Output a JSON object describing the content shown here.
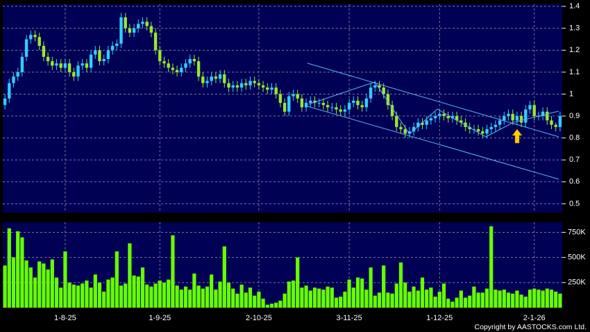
{
  "chart_data": {
    "type": "candlestick",
    "categories": [
      null,
      null,
      null,
      null,
      null,
      null,
      null,
      null,
      null,
      null,
      null,
      null,
      null,
      null,
      "1-8-25",
      null,
      null,
      null,
      null,
      null,
      null,
      null,
      null,
      null,
      null,
      null,
      null,
      null,
      null,
      null,
      null,
      null,
      null,
      null,
      null,
      null,
      "1-9-25",
      null,
      null,
      null,
      null,
      null,
      null,
      null,
      null,
      null,
      null,
      null,
      null,
      null,
      null,
      null,
      null,
      null,
      null,
      null,
      null,
      null,
      null,
      "2-10-25",
      null,
      null,
      null,
      null,
      null,
      null,
      null,
      null,
      null,
      null,
      null,
      null,
      null,
      null,
      null,
      null,
      null,
      null,
      null,
      null,
      "3-11-25",
      null,
      null,
      null,
      null,
      null,
      null,
      null,
      null,
      null,
      null,
      null,
      null,
      null,
      null,
      null,
      null,
      null,
      null,
      null,
      null,
      "1-12-25",
      null,
      null,
      null,
      null,
      null,
      null,
      null,
      null,
      null,
      null,
      null,
      null,
      null,
      null,
      null,
      null,
      null,
      null,
      null,
      null,
      null,
      "2-1-26",
      null,
      null,
      null,
      null,
      null,
      null
    ],
    "open": [
      0.95,
      0.98,
      1.05,
      1.08,
      1.1,
      1.17,
      1.25,
      1.27,
      1.26,
      1.22,
      1.17,
      1.15,
      1.13,
      1.14,
      1.12,
      1.14,
      1.1,
      1.08,
      1.13,
      1.14,
      1.12,
      1.18,
      1.2,
      1.15,
      1.16,
      1.2,
      1.22,
      1.23,
      1.35,
      1.3,
      1.28,
      1.3,
      1.32,
      1.33,
      1.31,
      1.28,
      1.2,
      1.15,
      1.14,
      1.12,
      1.11,
      1.1,
      1.12,
      1.14,
      1.16,
      1.15,
      1.08,
      1.05,
      1.06,
      1.08,
      1.07,
      1.09,
      1.05,
      1.03,
      1.04,
      1.03,
      1.05,
      1.04,
      1.06,
      1.05,
      1.04,
      1.03,
      1.02,
      1.03,
      1.0,
      0.96,
      0.92,
      0.99,
      1.0,
      0.98,
      0.94,
      0.96,
      0.97,
      0.96,
      0.96,
      0.95,
      0.94,
      0.94,
      0.93,
      0.92,
      0.93,
      0.96,
      0.97,
      0.95,
      0.94,
      0.98,
      1.03,
      1.04,
      1.03,
      1.0,
      0.95,
      0.9,
      0.85,
      0.84,
      0.82,
      0.83,
      0.85,
      0.87,
      0.86,
      0.88,
      0.89,
      0.9,
      0.91,
      0.9,
      0.89,
      0.9,
      0.88,
      0.87,
      0.85,
      0.84,
      0.84,
      0.83,
      0.82,
      0.84,
      0.85,
      0.86,
      0.88,
      0.9,
      0.91,
      0.88,
      0.9,
      0.87,
      0.93,
      0.95,
      0.9,
      0.9,
      0.92,
      0.88,
      0.86,
      0.85
    ],
    "high": [
      1.0,
      1.07,
      1.1,
      1.12,
      1.19,
      1.27,
      1.29,
      1.29,
      1.28,
      1.24,
      1.19,
      1.17,
      1.16,
      1.16,
      1.16,
      1.16,
      1.12,
      1.15,
      1.16,
      1.16,
      1.2,
      1.22,
      1.22,
      1.18,
      1.22,
      1.24,
      1.25,
      1.37,
      1.37,
      1.32,
      1.32,
      1.34,
      1.35,
      1.35,
      1.33,
      1.3,
      1.22,
      1.17,
      1.16,
      1.14,
      1.13,
      1.14,
      1.16,
      1.18,
      1.18,
      1.17,
      1.1,
      1.08,
      1.1,
      1.1,
      1.11,
      1.11,
      1.07,
      1.06,
      1.06,
      1.07,
      1.07,
      1.08,
      1.08,
      1.07,
      1.06,
      1.05,
      1.05,
      1.05,
      1.02,
      0.98,
      1.01,
      1.02,
      1.02,
      1.0,
      0.98,
      0.99,
      0.99,
      0.98,
      0.98,
      0.97,
      0.96,
      0.96,
      0.95,
      0.95,
      0.98,
      0.99,
      0.99,
      0.97,
      1.0,
      1.05,
      1.06,
      1.06,
      1.05,
      1.02,
      0.97,
      0.92,
      0.87,
      0.86,
      0.85,
      0.87,
      0.89,
      0.89,
      0.9,
      0.91,
      0.92,
      0.93,
      0.93,
      0.92,
      0.92,
      0.92,
      0.9,
      0.89,
      0.87,
      0.86,
      0.86,
      0.85,
      0.86,
      0.87,
      0.88,
      0.9,
      0.92,
      0.93,
      0.93,
      0.92,
      0.92,
      0.95,
      0.97,
      0.97,
      0.92,
      0.94,
      0.94,
      0.9,
      0.87,
      0.92
    ],
    "low": [
      0.93,
      0.96,
      1.03,
      1.06,
      1.08,
      1.15,
      1.23,
      1.24,
      1.2,
      1.15,
      1.13,
      1.11,
      1.11,
      1.1,
      1.1,
      1.08,
      1.06,
      1.06,
      1.11,
      1.1,
      1.1,
      1.16,
      1.13,
      1.13,
      1.14,
      1.18,
      1.2,
      1.21,
      1.28,
      1.26,
      1.26,
      1.28,
      1.3,
      1.29,
      1.26,
      1.18,
      1.13,
      1.12,
      1.1,
      1.09,
      1.08,
      1.08,
      1.1,
      1.12,
      1.13,
      1.06,
      1.03,
      1.03,
      1.04,
      1.05,
      1.05,
      1.03,
      1.01,
      1.01,
      1.01,
      1.01,
      1.02,
      1.02,
      1.03,
      1.02,
      1.01,
      1.0,
      1.0,
      0.98,
      0.94,
      0.9,
      0.9,
      0.97,
      0.96,
      0.92,
      0.92,
      0.94,
      0.94,
      0.94,
      0.93,
      0.92,
      0.92,
      0.91,
      0.9,
      0.9,
      0.91,
      0.94,
      0.93,
      0.92,
      0.92,
      0.96,
      1.01,
      1.01,
      0.98,
      0.93,
      0.88,
      0.83,
      0.82,
      0.8,
      0.8,
      0.81,
      0.83,
      0.84,
      0.84,
      0.86,
      0.87,
      0.88,
      0.88,
      0.87,
      0.87,
      0.86,
      0.85,
      0.83,
      0.82,
      0.82,
      0.81,
      0.8,
      0.8,
      0.82,
      0.83,
      0.84,
      0.86,
      0.88,
      0.86,
      0.86,
      0.85,
      0.85,
      0.91,
      0.88,
      0.88,
      0.88,
      0.86,
      0.84,
      0.83,
      0.83
    ],
    "close": [
      0.98,
      1.05,
      1.08,
      1.1,
      1.17,
      1.25,
      1.27,
      1.26,
      1.22,
      1.17,
      1.15,
      1.13,
      1.14,
      1.12,
      1.14,
      1.1,
      1.08,
      1.13,
      1.14,
      1.12,
      1.18,
      1.2,
      1.15,
      1.16,
      1.2,
      1.22,
      1.23,
      1.35,
      1.3,
      1.28,
      1.3,
      1.32,
      1.33,
      1.31,
      1.28,
      1.2,
      1.15,
      1.14,
      1.12,
      1.11,
      1.1,
      1.12,
      1.14,
      1.16,
      1.15,
      1.08,
      1.05,
      1.06,
      1.08,
      1.07,
      1.09,
      1.05,
      1.03,
      1.04,
      1.03,
      1.05,
      1.04,
      1.06,
      1.05,
      1.04,
      1.03,
      1.02,
      1.03,
      1.0,
      0.96,
      0.92,
      0.99,
      1.0,
      0.98,
      0.94,
      0.96,
      0.97,
      0.96,
      0.96,
      0.95,
      0.94,
      0.94,
      0.93,
      0.92,
      0.93,
      0.96,
      0.97,
      0.95,
      0.94,
      0.98,
      1.03,
      1.04,
      1.03,
      1.0,
      0.95,
      0.9,
      0.85,
      0.84,
      0.82,
      0.83,
      0.85,
      0.87,
      0.86,
      0.88,
      0.89,
      0.9,
      0.91,
      0.9,
      0.89,
      0.9,
      0.88,
      0.87,
      0.85,
      0.84,
      0.84,
      0.83,
      0.82,
      0.84,
      0.85,
      0.86,
      0.88,
      0.9,
      0.91,
      0.88,
      0.9,
      0.87,
      0.93,
      0.95,
      0.9,
      0.9,
      0.92,
      0.88,
      0.86,
      0.85,
      0.9
    ],
    "volume": [
      420000,
      790000,
      500000,
      760000,
      700000,
      470000,
      400000,
      300000,
      460000,
      440000,
      380000,
      480000,
      300000,
      200000,
      560000,
      250000,
      230000,
      220000,
      240000,
      270000,
      200000,
      330000,
      250000,
      160000,
      280000,
      300000,
      560000,
      220000,
      240000,
      640000,
      320000,
      310000,
      400000,
      230000,
      210000,
      240000,
      270000,
      250000,
      280000,
      720000,
      220000,
      180000,
      210000,
      180000,
      340000,
      220000,
      190000,
      210000,
      330000,
      180000,
      260000,
      610000,
      250000,
      190000,
      140000,
      230000,
      150000,
      200000,
      120000,
      160000,
      90000,
      30000,
      40000,
      50000,
      70000,
      140000,
      260000,
      270000,
      500000,
      200000,
      220000,
      170000,
      200000,
      190000,
      180000,
      210000,
      200000,
      100000,
      110000,
      160000,
      280000,
      200000,
      300000,
      290000,
      180000,
      400000,
      120000,
      150000,
      420000,
      150000,
      140000,
      240000,
      450000,
      250000,
      160000,
      210000,
      170000,
      300000,
      180000,
      200000,
      110000,
      160000,
      240000,
      90000,
      60000,
      100000,
      170000,
      100000,
      120000,
      210000,
      150000,
      150000,
      190000,
      810000,
      180000,
      170000,
      180000,
      150000,
      140000,
      170000,
      130000,
      110000,
      180000,
      190000,
      180000,
      170000,
      190000,
      180000,
      160000,
      140000
    ],
    "ylim": [
      0.46,
      1.41
    ],
    "yticks": [
      0.5,
      0.6,
      0.7,
      0.8,
      0.9,
      1,
      1.1,
      1.2,
      1.3,
      1.4
    ],
    "volume_ylim": [
      0,
      850000
    ],
    "volume_yticks": [
      {
        "value": 250000,
        "label": "250K"
      },
      {
        "value": 500000,
        "label": "500K"
      },
      {
        "value": 750000,
        "label": "750K"
      }
    ],
    "up_color": "#33ccff",
    "down_color": "#99e633",
    "volume_color": "#66ff00",
    "grid": true,
    "copyright": "Copyright by AASTOCKS.com Ltd."
  }
}
